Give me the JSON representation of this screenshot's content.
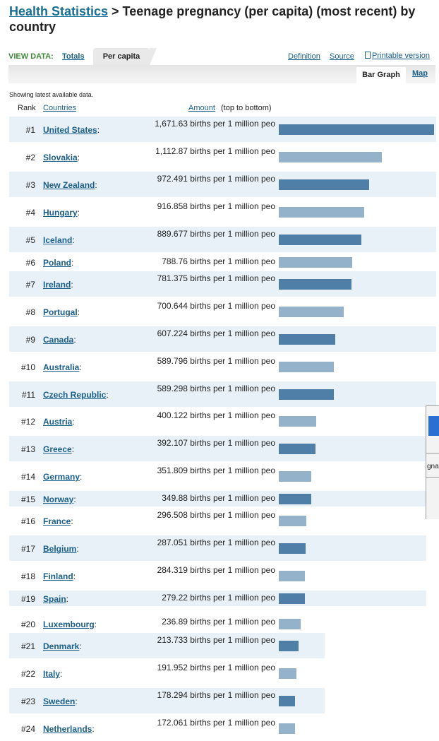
{
  "header": {
    "crumb": "Health Statistics",
    "title_rest": " > Teenage pregnancy (per capita) (most recent) by country"
  },
  "tabs": {
    "view_label": "VIEW DATA:",
    "totals": "Totals",
    "per_capita": "Per capita",
    "definition": "Definition",
    "source": "Source",
    "printable": "Printable version"
  },
  "subtabs": {
    "bar_graph": "Bar Graph",
    "map": "Map"
  },
  "table": {
    "note": "Showing latest available data.",
    "col_rank": "Rank",
    "col_countries": "Countries",
    "col_amount": "Amount",
    "col_note": "(top to bottom)"
  },
  "rows": [
    {
      "rank": "#1",
      "country": "United States",
      "amount": "1,671.63 births per 1 million peo",
      "value": 1671.63
    },
    {
      "rank": "#2",
      "country": "Slovakia",
      "amount": "1,112.87 births per 1 million peo",
      "value": 1112.87
    },
    {
      "rank": "#3",
      "country": "New Zealand",
      "amount": "972.491 births per 1 million peo",
      "value": 972.491
    },
    {
      "rank": "#4",
      "country": "Hungary",
      "amount": "916.858 births per 1 million peo",
      "value": 916.858
    },
    {
      "rank": "#5",
      "country": "Iceland",
      "amount": "889.677 births per 1 million peo",
      "value": 889.677
    },
    {
      "rank": "#6",
      "country": "Poland",
      "amount": "788.76 births per 1 million peo",
      "value": 788.76
    },
    {
      "rank": "#7",
      "country": "Ireland",
      "amount": "781.375 births per 1 million peo",
      "value": 781.375
    },
    {
      "rank": "#8",
      "country": "Portugal",
      "amount": "700.644 births per 1 million peo",
      "value": 700.644
    },
    {
      "rank": "#9",
      "country": "Canada",
      "amount": "607.224 births per 1 million peo",
      "value": 607.224
    },
    {
      "rank": "#10",
      "country": "Australia",
      "amount": "589.796 births per 1 million peo",
      "value": 589.796
    },
    {
      "rank": "#11",
      "country": "Czech Republic",
      "amount": "589.298 births per 1 million peo",
      "value": 589.298
    },
    {
      "rank": "#12",
      "country": "Austria",
      "amount": "400.122 births per 1 million peo",
      "value": 400.122
    },
    {
      "rank": "#13",
      "country": "Greece",
      "amount": "392.107 births per 1 million peo",
      "value": 392.107
    },
    {
      "rank": "#14",
      "country": "Germany",
      "amount": "351.809 births per 1 million peo",
      "value": 351.809
    },
    {
      "rank": "#15",
      "country": "Norway",
      "amount": "349.88 births per 1 million peo",
      "value": 349.88
    },
    {
      "rank": "#16",
      "country": "France",
      "amount": "296.508 births per 1 million peo",
      "value": 296.508
    },
    {
      "rank": "#17",
      "country": "Belgium",
      "amount": "287.051 births per 1 million peo",
      "value": 287.051
    },
    {
      "rank": "#18",
      "country": "Finland",
      "amount": "284.319 births per 1 million peo",
      "value": 284.319
    },
    {
      "rank": "#19",
      "country": "Spain",
      "amount": "279.22 births per 1 million peo",
      "value": 279.22
    },
    {
      "rank": "#20",
      "country": "Luxembourg",
      "amount": "236.89 births per 1 million peo",
      "value": 236.89
    },
    {
      "rank": "#21",
      "country": "Denmark",
      "amount": "213.733 births per 1 million peo",
      "value": 213.733
    },
    {
      "rank": "#22",
      "country": "Italy",
      "amount": "191.952 births per 1 million peo",
      "value": 191.952
    },
    {
      "rank": "#23",
      "country": "Sweden",
      "amount": "178.294 births per 1 million peo",
      "value": 178.294
    },
    {
      "rank": "#24",
      "country": "Netherlands",
      "amount": "172.061 births per 1 million peo",
      "value": 172.061
    }
  ],
  "overlay_text": "gnar",
  "colors": {
    "bar_dark": "#4f7fa6",
    "bar_light": "#94b3cb",
    "row_shade": "#e8f1f7",
    "link": "#1a5e8a"
  }
}
